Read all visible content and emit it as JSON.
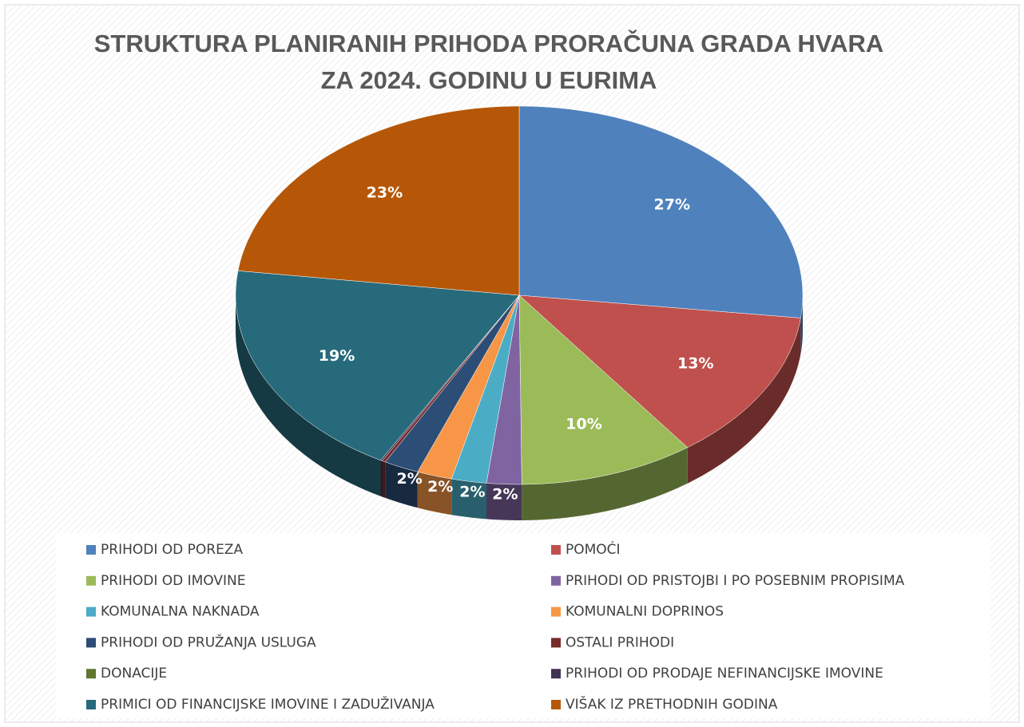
{
  "chart_data": {
    "type": "pie3d",
    "title": [
      "STRUKTURA PLANIRANIH PRIHODA PRORAČUNA GRADA HVARA",
      "ZA 2024. GODINU U EURIMA"
    ],
    "categories": [
      "PRIHODI OD POREZA",
      "POMOĆI",
      "PRIHODI OD IMOVINE",
      "PRIHODI OD PRISTOJBI I PO POSEBNIM PROPISIMA",
      "KOMUNALNA NAKNADA",
      "KOMUNALNI DOPRINOS",
      "PRIHODI OD PRUŽANJA USLUGA",
      "OSTALI PRIHODI",
      "DONACIJE",
      "PRIHODI OD PRODAJE NEFINANCIJSKE IMOVINE",
      "PRIMICI OD FINANCIJSKE IMOVINE I ZADUŽIVANJA",
      "VIŠAK IZ PRETHODNIH GODINA"
    ],
    "values": [
      27,
      13,
      10,
      2,
      2,
      2,
      2,
      0.2,
      0,
      0.1,
      19,
      23
    ],
    "value_labels": [
      "27%",
      "13%",
      "10%",
      "2%",
      "2%",
      "2%",
      "2%",
      null,
      null,
      null,
      "19%",
      "23%"
    ],
    "colors": [
      "#4f81bd",
      "#c0504d",
      "#9bbb59",
      "#8064a2",
      "#4bacc6",
      "#f79646",
      "#2c4d75",
      "#772c2a",
      "#5f7530",
      "#403152",
      "#276a7c",
      "#b65708"
    ],
    "legend": "bottom"
  }
}
